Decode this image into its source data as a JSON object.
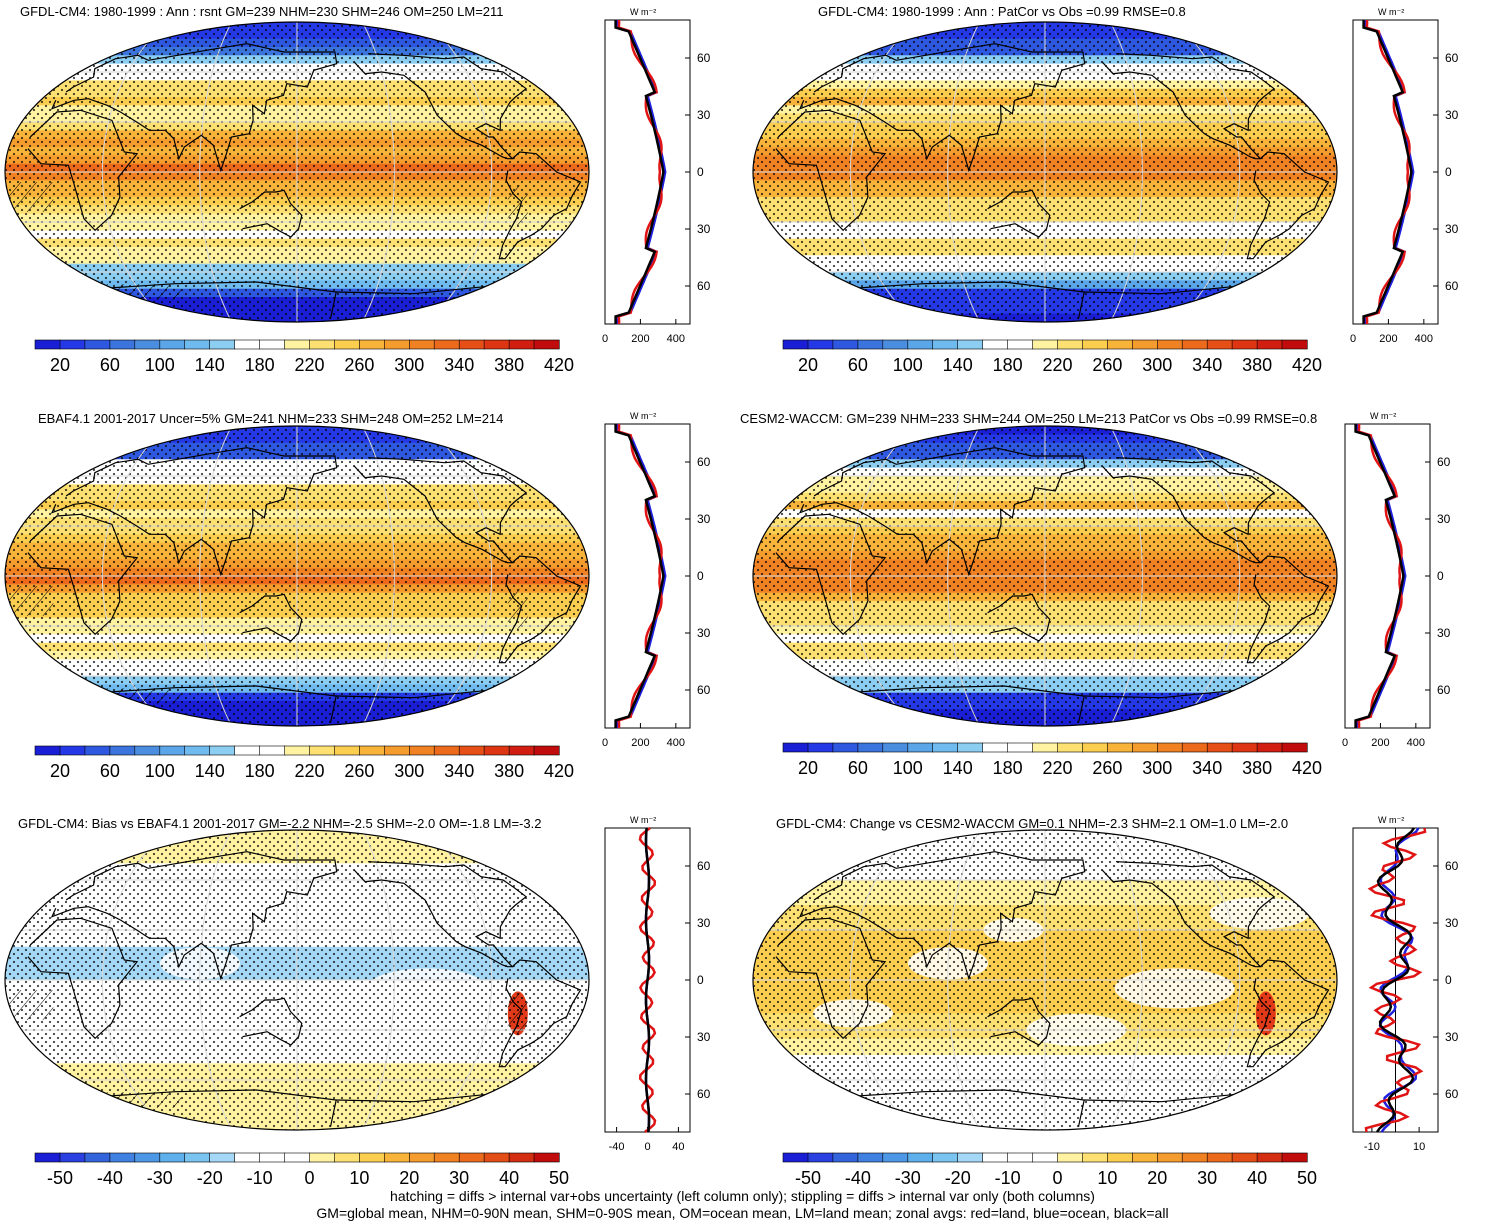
{
  "panels": [
    {
      "title": "GFDL-CM4: 1980-1999 : Ann : rsnt GM=239 NHM=230 SHM=246 OM=250 LM=211",
      "kind": "abs",
      "hatch": "strong",
      "unit": "W m⁻²",
      "lat_labels": [
        "60N",
        "30N",
        "0",
        "30S",
        "60S"
      ],
      "cbar_labels": [
        "20",
        "60",
        "100",
        "140",
        "180",
        "220",
        "260",
        "300",
        "340",
        "380",
        "420"
      ],
      "xticks": [
        "0",
        "200",
        "400"
      ]
    },
    {
      "title": "GFDL-CM4: 1980-1999 : Ann : PatCor vs Obs =0.99 RMSE=0.8",
      "kind": "abs",
      "hatch": "none",
      "unit": "W m⁻²",
      "lat_labels": [
        "60N",
        "30N",
        "0",
        "30S",
        "60S"
      ],
      "cbar_labels": [
        "20",
        "60",
        "100",
        "140",
        "180",
        "220",
        "260",
        "300",
        "340",
        "380",
        "420"
      ],
      "xticks": [
        "0",
        "200",
        "400"
      ]
    },
    {
      "title": "EBAF4.1 2001-2017 Uncer=5% GM=241 NHM=233 SHM=248 OM=252 LM=214",
      "kind": "abs",
      "hatch": "strong",
      "unit": "W m⁻²",
      "lat_labels": [
        "60N",
        "30N",
        "0",
        "30S",
        "60S"
      ],
      "cbar_labels": [
        "20",
        "60",
        "100",
        "140",
        "180",
        "220",
        "260",
        "300",
        "340",
        "380",
        "420"
      ],
      "xticks": [
        "0",
        "200",
        "400"
      ]
    },
    {
      "title": "CESM2-WACCM: GM=239 NHM=233 SHM=244 OM=250 LM=213 PatCor vs Obs =0.99 RMSE=0.8",
      "kind": "abs",
      "hatch": "none",
      "unit": "W m⁻²",
      "lat_labels": [
        "60N",
        "30N",
        "0",
        "30S",
        "60S"
      ],
      "cbar_labels": [
        "20",
        "60",
        "100",
        "140",
        "180",
        "220",
        "260",
        "300",
        "340",
        "380",
        "420"
      ],
      "xticks": [
        "0",
        "200",
        "400"
      ]
    },
    {
      "title": "GFDL-CM4: Bias vs EBAF4.1 2001-2017 GM=-2.2 NHM=-2.5 SHM=-2.0 OM=-1.8 LM=-3.2",
      "kind": "bias",
      "hatch": "strong",
      "unit": "W m⁻²",
      "lat_labels": [
        "60N",
        "30N",
        "0",
        "30S",
        "60S"
      ],
      "cbar_labels": [
        "-50",
        "-40",
        "-30",
        "-20",
        "-10",
        "0",
        "10",
        "20",
        "30",
        "40",
        "50"
      ],
      "xticks": [
        "-40",
        "0",
        "40"
      ]
    },
    {
      "title": "GFDL-CM4: Change vs CESM2-WACCM GM=0.1 NHM=-2.3 SHM=2.1 OM=1.0 LM=-2.0",
      "kind": "change",
      "hatch": "none",
      "unit": "W m⁻²",
      "lat_labels": [
        "60N",
        "30N",
        "0",
        "30S",
        "60S"
      ],
      "cbar_labels": [
        "-50",
        "-40",
        "-30",
        "-20",
        "-10",
        "0",
        "10",
        "20",
        "30",
        "40",
        "50"
      ],
      "xticks": [
        "-10",
        "10"
      ]
    }
  ],
  "palette": {
    "abs": [
      "#1a1fd6",
      "#2438e6",
      "#2f58e0",
      "#3b74dc",
      "#4b8ee0",
      "#5aa6e8",
      "#6fbaee",
      "#8ccdf2",
      "#ffffff",
      "#ffffff",
      "#fff2a0",
      "#fde072",
      "#fbce50",
      "#f8b43a",
      "#f59c2e",
      "#f18224",
      "#ec6a1c",
      "#e65016",
      "#de3612",
      "#d21e10",
      "#c00c0c"
    ],
    "div": [
      "#1a1fd6",
      "#2a40e0",
      "#3464dc",
      "#3f80e0",
      "#4d98e6",
      "#5eb0ec",
      "#7cc4f0",
      "#a4d8f6",
      "#ffffff",
      "#ffffff",
      "#ffffff",
      "#fff2a0",
      "#fde072",
      "#fbce50",
      "#f8b43a",
      "#f59c2e",
      "#f18224",
      "#ec6a1c",
      "#e24e16",
      "#d42e12",
      "#c00c0c"
    ]
  },
  "legend": {
    "red": "land",
    "blue": "ocean",
    "black": "all"
  },
  "footer": {
    "line1": "hatching = diffs > internal var+obs uncertainty (left column only); stippling = diffs > internal var only (both columns)",
    "line2": "GM=global mean, NHM=0-90N mean, SHM=0-90S mean, OM=ocean mean, LM=land mean; zonal avgs: red=land, blue=ocean, black=all"
  }
}
